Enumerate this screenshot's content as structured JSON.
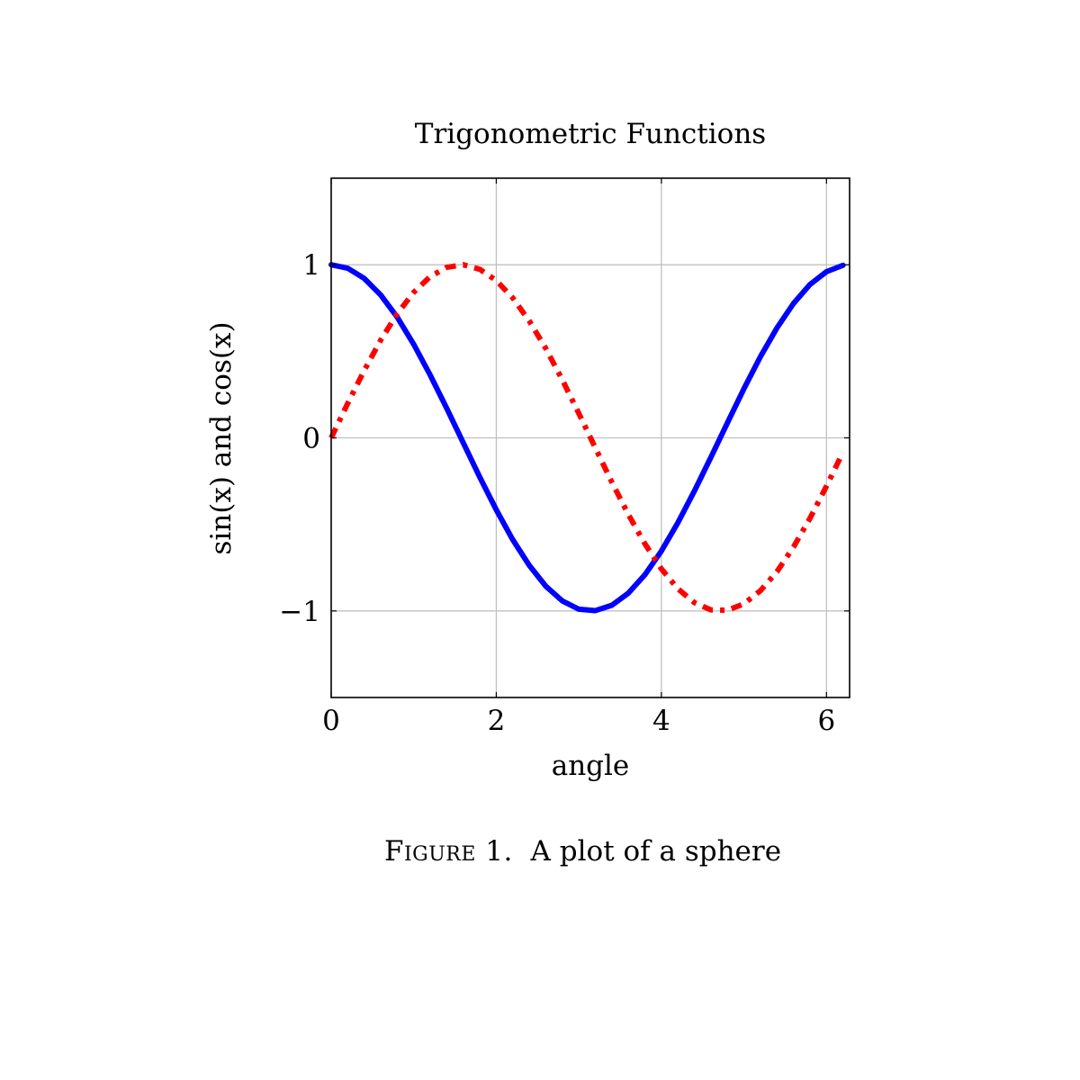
{
  "chart_data": {
    "type": "line",
    "title": "Trigonometric Functions",
    "xlabel": "angle",
    "ylabel": "sin(x) and cos(x)",
    "xlim": [
      0,
      6.28
    ],
    "ylim": [
      -1.5,
      1.5
    ],
    "grid": true,
    "xticks": [
      0,
      2,
      4,
      6
    ],
    "yticks": [
      -1,
      0,
      1
    ],
    "xtick_labels": [
      "0",
      "2",
      "4",
      "6"
    ],
    "ytick_labels": [
      "−1",
      "0",
      "1"
    ],
    "series": [
      {
        "color": "#0000ff",
        "style": "solid",
        "x": [
          0,
          0.2,
          0.4,
          0.6,
          0.8,
          1.0,
          1.2,
          1.4,
          1.6,
          1.8,
          2.0,
          2.2,
          2.4,
          2.6,
          2.8,
          3.0,
          3.2,
          3.4,
          3.6,
          3.8,
          4.0,
          4.2,
          4.4,
          4.6,
          4.8,
          5.0,
          5.2,
          5.4,
          5.6,
          5.8,
          6.0,
          6.2
        ],
        "values": [
          1.0,
          0.98,
          0.921,
          0.825,
          0.697,
          0.54,
          0.362,
          0.17,
          -0.029,
          -0.227,
          -0.416,
          -0.589,
          -0.737,
          -0.857,
          -0.942,
          -0.99,
          -0.998,
          -0.967,
          -0.897,
          -0.791,
          -0.654,
          -0.49,
          -0.307,
          -0.112,
          0.087,
          0.284,
          0.469,
          0.635,
          0.776,
          0.886,
          0.96,
          0.997
        ]
      },
      {
        "color": "#ff0000",
        "style": "dash-dot",
        "x": [
          0,
          0.2,
          0.4,
          0.6,
          0.8,
          1.0,
          1.2,
          1.4,
          1.6,
          1.8,
          2.0,
          2.2,
          2.4,
          2.6,
          2.8,
          3.0,
          3.2,
          3.4,
          3.6,
          3.8,
          4.0,
          4.2,
          4.4,
          4.6,
          4.8,
          5.0,
          5.2,
          5.4,
          5.6,
          5.8,
          6.0,
          6.2
        ],
        "values": [
          0.0,
          0.199,
          0.389,
          0.565,
          0.717,
          0.841,
          0.932,
          0.985,
          1.0,
          0.974,
          0.909,
          0.808,
          0.675,
          0.516,
          0.335,
          0.141,
          -0.058,
          -0.256,
          -0.443,
          -0.612,
          -0.757,
          -0.872,
          -0.952,
          -0.994,
          -0.996,
          -0.959,
          -0.883,
          -0.773,
          -0.631,
          -0.465,
          -0.279,
          -0.083
        ]
      }
    ]
  },
  "caption": {
    "label": "Figure 1.",
    "text": "A plot of a sphere"
  }
}
